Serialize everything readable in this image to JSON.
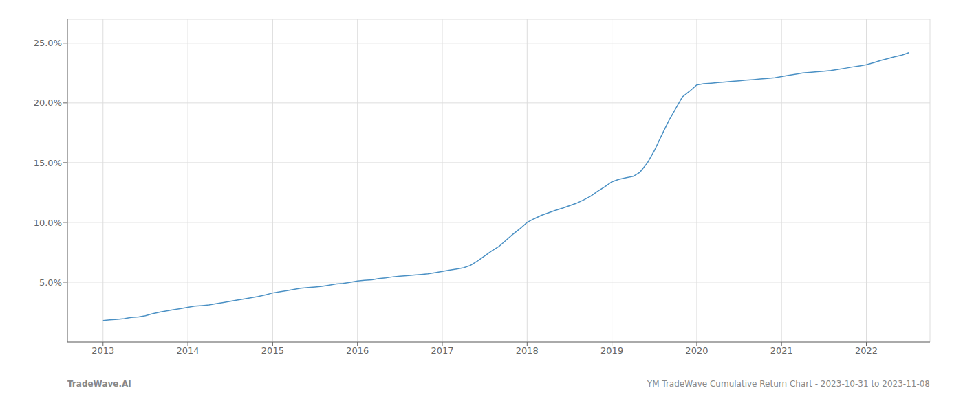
{
  "chart_data": {
    "type": "line",
    "annotations": [
      "TradeWave.AI",
      "YM TradeWave Cumulative Return Chart - 2023-10-31 to 2023-11-08"
    ],
    "x": [
      2013.0,
      2013.08,
      2013.17,
      2013.25,
      2013.33,
      2013.42,
      2013.5,
      2013.58,
      2013.67,
      2013.75,
      2013.83,
      2013.92,
      2014.0,
      2014.08,
      2014.17,
      2014.25,
      2014.33,
      2014.42,
      2014.5,
      2014.58,
      2014.67,
      2014.75,
      2014.83,
      2014.92,
      2015.0,
      2015.08,
      2015.17,
      2015.25,
      2015.33,
      2015.42,
      2015.5,
      2015.58,
      2015.67,
      2015.75,
      2015.83,
      2015.92,
      2016.0,
      2016.08,
      2016.17,
      2016.25,
      2016.33,
      2016.42,
      2016.5,
      2016.58,
      2016.67,
      2016.75,
      2016.83,
      2016.92,
      2017.0,
      2017.08,
      2017.17,
      2017.25,
      2017.33,
      2017.42,
      2017.5,
      2017.58,
      2017.67,
      2017.75,
      2017.83,
      2017.92,
      2018.0,
      2018.08,
      2018.17,
      2018.25,
      2018.33,
      2018.42,
      2018.5,
      2018.58,
      2018.67,
      2018.75,
      2018.83,
      2018.92,
      2019.0,
      2019.08,
      2019.17,
      2019.25,
      2019.33,
      2019.42,
      2019.5,
      2019.58,
      2019.67,
      2019.75,
      2019.83,
      2019.92,
      2020.0,
      2020.08,
      2020.17,
      2020.25,
      2020.33,
      2020.42,
      2020.5,
      2020.58,
      2020.67,
      2020.75,
      2020.83,
      2020.92,
      2021.0,
      2021.08,
      2021.17,
      2021.25,
      2021.33,
      2021.42,
      2021.5,
      2021.58,
      2021.67,
      2021.75,
      2021.83,
      2021.92,
      2022.0,
      2022.08,
      2022.17,
      2022.25,
      2022.33,
      2022.42,
      2022.5
    ],
    "values": [
      1.8,
      1.85,
      1.9,
      1.95,
      2.05,
      2.1,
      2.2,
      2.35,
      2.5,
      2.6,
      2.7,
      2.8,
      2.9,
      3.0,
      3.05,
      3.1,
      3.2,
      3.3,
      3.4,
      3.5,
      3.6,
      3.7,
      3.8,
      3.95,
      4.1,
      4.2,
      4.3,
      4.4,
      4.5,
      4.55,
      4.6,
      4.65,
      4.75,
      4.85,
      4.9,
      5.0,
      5.1,
      5.15,
      5.2,
      5.3,
      5.35,
      5.45,
      5.5,
      5.55,
      5.6,
      5.65,
      5.7,
      5.8,
      5.9,
      6.0,
      6.1,
      6.2,
      6.4,
      6.8,
      7.2,
      7.6,
      8.0,
      8.5,
      9.0,
      9.5,
      10.0,
      10.3,
      10.6,
      10.8,
      11.0,
      11.2,
      11.4,
      11.6,
      11.9,
      12.2,
      12.6,
      13.0,
      13.4,
      13.6,
      13.75,
      13.85,
      14.2,
      15.0,
      16.0,
      17.2,
      18.5,
      19.5,
      20.5,
      21.0,
      21.5,
      21.6,
      21.65,
      21.7,
      21.75,
      21.8,
      21.85,
      21.9,
      21.95,
      22.0,
      22.05,
      22.1,
      22.2,
      22.3,
      22.4,
      22.5,
      22.55,
      22.6,
      22.65,
      22.7,
      22.8,
      22.9,
      23.0,
      23.1,
      23.2,
      23.35,
      23.55,
      23.7,
      23.85,
      24.0,
      24.2
    ],
    "color": "#4a90c4",
    "xlim": [
      2012.58,
      2022.75
    ],
    "ylim": [
      0,
      27
    ],
    "xticks": [
      2013,
      2014,
      2015,
      2016,
      2017,
      2018,
      2019,
      2020,
      2021,
      2022
    ],
    "yticks": [
      {
        "value": 5.0,
        "label": "5.0%"
      },
      {
        "value": 10.0,
        "label": "10.0%"
      },
      {
        "value": 15.0,
        "label": "15.0%"
      },
      {
        "value": 20.0,
        "label": "20.0%"
      },
      {
        "value": 25.0,
        "label": "25.0%"
      }
    ],
    "grid": true
  }
}
